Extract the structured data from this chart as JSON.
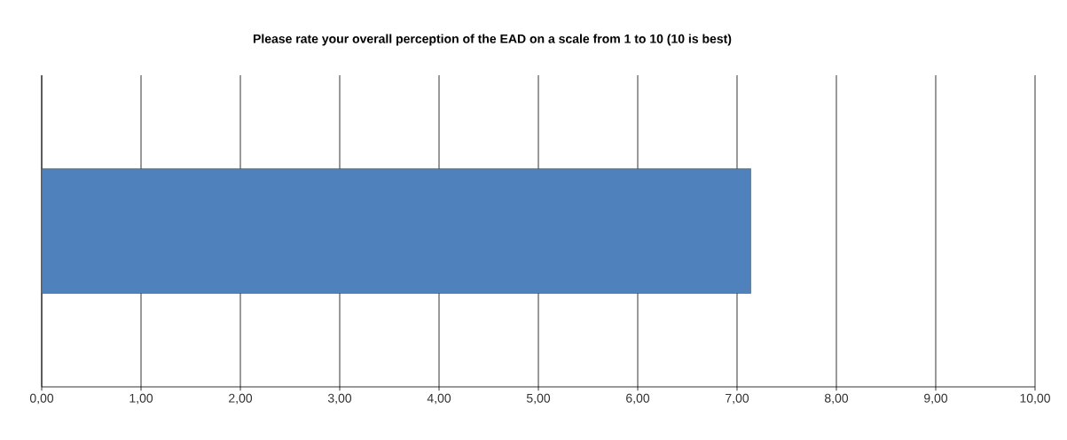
{
  "chart_data": {
    "type": "bar",
    "orientation": "horizontal",
    "title": "Please rate your overall perception of the EAD on a scale from 1 to 10 (10 is best)",
    "categories": [
      null
    ],
    "values": [
      7.14
    ],
    "color": "#4f81bd",
    "xlim": [
      0,
      10
    ],
    "xticks": [
      {
        "value": 0,
        "label": "0,00"
      },
      {
        "value": 1,
        "label": "1,00"
      },
      {
        "value": 2,
        "label": "2,00"
      },
      {
        "value": 3,
        "label": "3,00"
      },
      {
        "value": 4,
        "label": "4,00"
      },
      {
        "value": 5,
        "label": "5,00"
      },
      {
        "value": 6,
        "label": "6,00"
      },
      {
        "value": 7,
        "label": "7,00"
      },
      {
        "value": 8,
        "label": "8,00"
      },
      {
        "value": 9,
        "label": "9,00"
      },
      {
        "value": 10,
        "label": "10,00"
      }
    ],
    "grid": "x"
  }
}
